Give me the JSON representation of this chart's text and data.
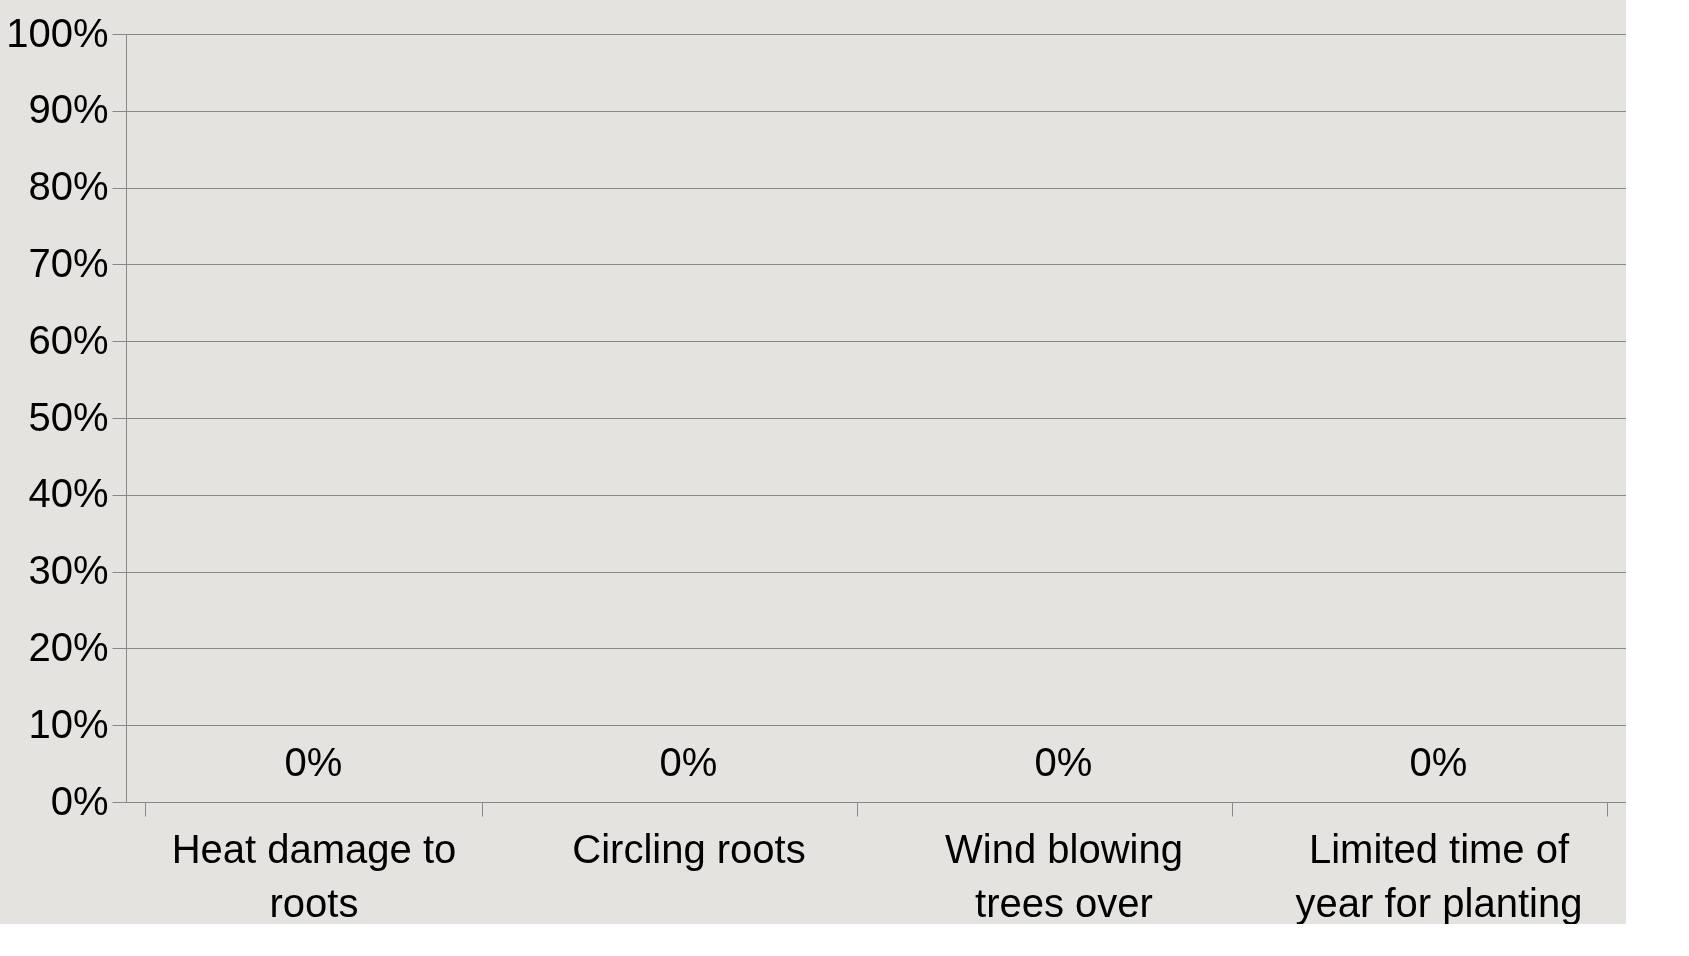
{
  "chart_data": {
    "type": "bar",
    "categories": [
      "Heat damage to roots",
      "Circling roots",
      "Wind blowing trees over",
      "Limited time of year for planting"
    ],
    "values": [
      0,
      0,
      0,
      0
    ],
    "value_labels": [
      "0%",
      "0%",
      "0%",
      "0%"
    ],
    "ylim": [
      0,
      100
    ],
    "yticks": [
      {
        "value": 0,
        "label": "0%"
      },
      {
        "value": 10,
        "label": "10%"
      },
      {
        "value": 20,
        "label": "20%"
      },
      {
        "value": 30,
        "label": "30%"
      },
      {
        "value": 40,
        "label": "40%"
      },
      {
        "value": 50,
        "label": "50%"
      },
      {
        "value": 60,
        "label": "60%"
      },
      {
        "value": 70,
        "label": "70%"
      },
      {
        "value": 80,
        "label": "80%"
      },
      {
        "value": 90,
        "label": "90%"
      },
      {
        "value": 100,
        "label": "100%"
      }
    ],
    "grid": "y"
  }
}
